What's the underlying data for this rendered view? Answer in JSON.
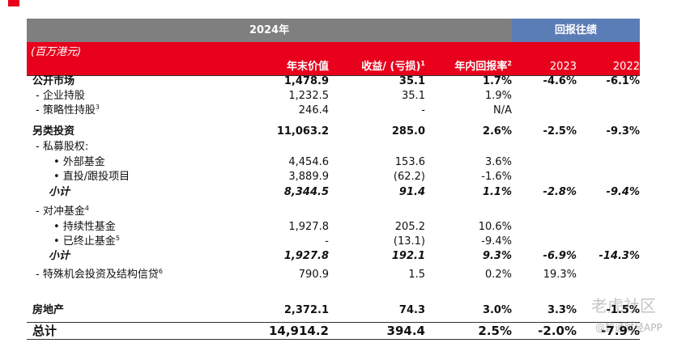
{
  "header": {
    "year": "2024年",
    "returns": "回报往绩"
  },
  "unit": "(百万港元)",
  "columns": [
    {
      "label": "年末价值"
    },
    {
      "label": "收益/ (亏损)",
      "note": "1"
    },
    {
      "label": "年内回报率",
      "note": "2"
    },
    {
      "label": "2023"
    },
    {
      "label": "2022"
    }
  ],
  "rows": [
    {
      "label": "公开市场",
      "style": "bold",
      "value": "1,478.9",
      "gain": "35.1",
      "ret": "1.7%",
      "r2023": "-4.6%",
      "r2022": "-6.1%"
    },
    {
      "label": "- 企业持股",
      "value": "1,232.5",
      "gain": "35.1",
      "ret": "1.9%"
    },
    {
      "label": "- 策略性持股",
      "note": "3",
      "value": "246.4",
      "gain": "-",
      "ret": "N/A"
    },
    {
      "label": "另类投资",
      "style": "bold",
      "value": "11,063.2",
      "gain": "285.0",
      "ret": "2.6%",
      "r2023": "-2.5%",
      "r2022": "-9.3%"
    },
    {
      "label": "- 私募股权:"
    },
    {
      "label": "• 外部基金",
      "value": "4,454.6",
      "gain": "153.6",
      "ret": "3.6%"
    },
    {
      "label": "• 直投/跟投项目",
      "value": "3,889.9",
      "gain": "(62.2)",
      "ret": "-1.6%"
    },
    {
      "label": "小计",
      "style": "italic",
      "value": "8,344.5",
      "gain": "91.4",
      "ret": "1.1%",
      "r2023": "-2.8%",
      "r2022": "-9.4%"
    },
    {
      "label": "- 对冲基金",
      "note": "4"
    },
    {
      "label": "• 持续性基金",
      "value": "1,927.8",
      "gain": "205.2",
      "ret": "10.6%"
    },
    {
      "label": "• 已终止基金",
      "note": "5",
      "value": "-",
      "gain": "(13.1)",
      "ret": "-9.4%"
    },
    {
      "label": "小计",
      "style": "italic",
      "value": "1,927.8",
      "gain": "192.1",
      "ret": "9.3%",
      "r2023": "-6.9%",
      "r2022": "-14.3%"
    },
    {
      "label": "- 特殊机会投资及结构信贷",
      "note": "6",
      "value": "790.9",
      "gain": "1.5",
      "ret": "0.2%",
      "r2023": "19.3%"
    },
    {
      "label": "房地产",
      "style": "bold",
      "value": "2,372.1",
      "gain": "74.3",
      "ret": "3.0%",
      "r2023": "3.3%",
      "r2022": "-1.5%"
    },
    {
      "label": "总计",
      "style": "bold",
      "value": "14,914.2",
      "gain": "394.4",
      "ret": "2.5%",
      "r2023": "-2.0%",
      "r2022": "-7.9%"
    }
  ],
  "watermark": {
    "line1": "老虎社区",
    "line2": "@智通财经APP"
  }
}
